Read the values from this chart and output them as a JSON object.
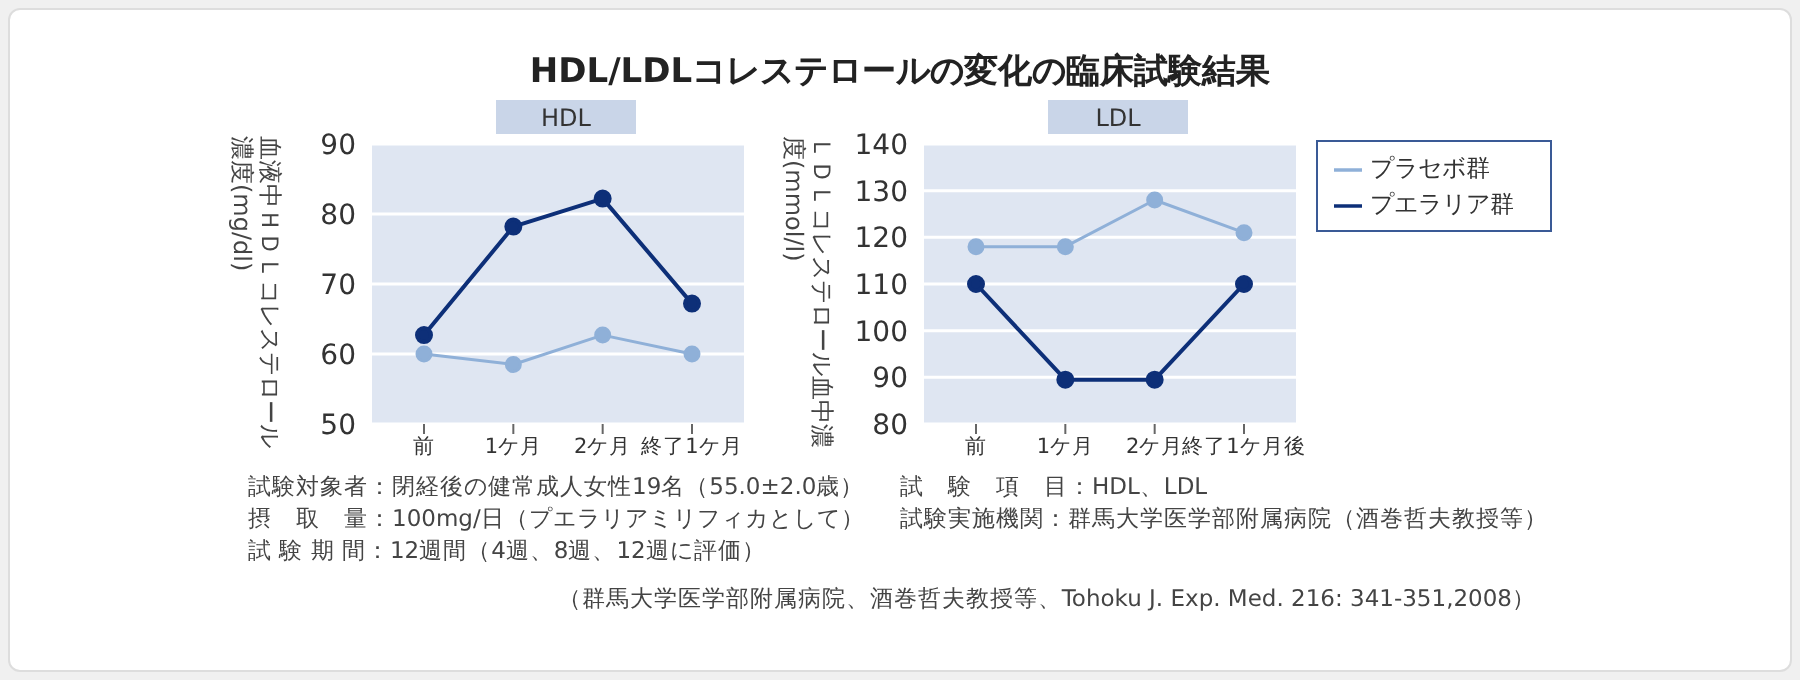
{
  "chart_data": [
    {
      "type": "line",
      "title": "HDL/LDLコレステロールの変化の臨床試験結果",
      "subtitle": "HDL",
      "ylabel": "血液中ＨＤＬコレステロール濃度(mg/dl)",
      "categories": [
        "前",
        "1ケ月",
        "2ケ月",
        "終了1ケ月"
      ],
      "series": [
        {
          "color": "#8fb0d8",
          "values": [
            60,
            58.5,
            62.7,
            60
          ]
        },
        {
          "color": "#0d2f78",
          "values": [
            62.7,
            78.2,
            82.2,
            67.2
          ]
        }
      ],
      "ylim": [
        50,
        90
      ],
      "yticks": [
        50,
        60,
        70,
        80,
        90
      ],
      "grid": "y",
      "marker": "circle",
      "annotations": [
        "試験対象者：閉経後の健常成人女性19名（55.0±2.0歳）",
        "摂　取　量：100mg/日（プエラリアミリフィカとして）",
        "試 験 期 間：12週間（4週、8週、12週に評価）",
        "試　験　項　目：HDL、LDL",
        "試験実施機関：群馬大学医学部附属病院（酒巻哲夫教授等）",
        "（群馬大学医学部附属病院、酒巻哲夫教授等、Tohoku J. Exp. Med. 216: 341-351,2008）"
      ]
    },
    {
      "type": "line",
      "subtitle": "LDL",
      "ylabel": "ＬＤＬコレステロール血中濃度(mmol/l)",
      "categories": [
        "前",
        "1ケ月",
        "2ケ月",
        "終了1ケ月後"
      ],
      "series": [
        {
          "name": "プラセボ群",
          "color": "#8fb0d8",
          "values": [
            118,
            118,
            128,
            121
          ]
        },
        {
          "name": "プエラリア群",
          "color": "#0d2f78",
          "values": [
            110,
            89.5,
            89.5,
            110
          ]
        }
      ],
      "ylim": [
        80,
        140
      ],
      "yticks": [
        80,
        90,
        100,
        110,
        120,
        130,
        140
      ],
      "grid": "y",
      "marker": "circle",
      "legend": "right"
    }
  ]
}
